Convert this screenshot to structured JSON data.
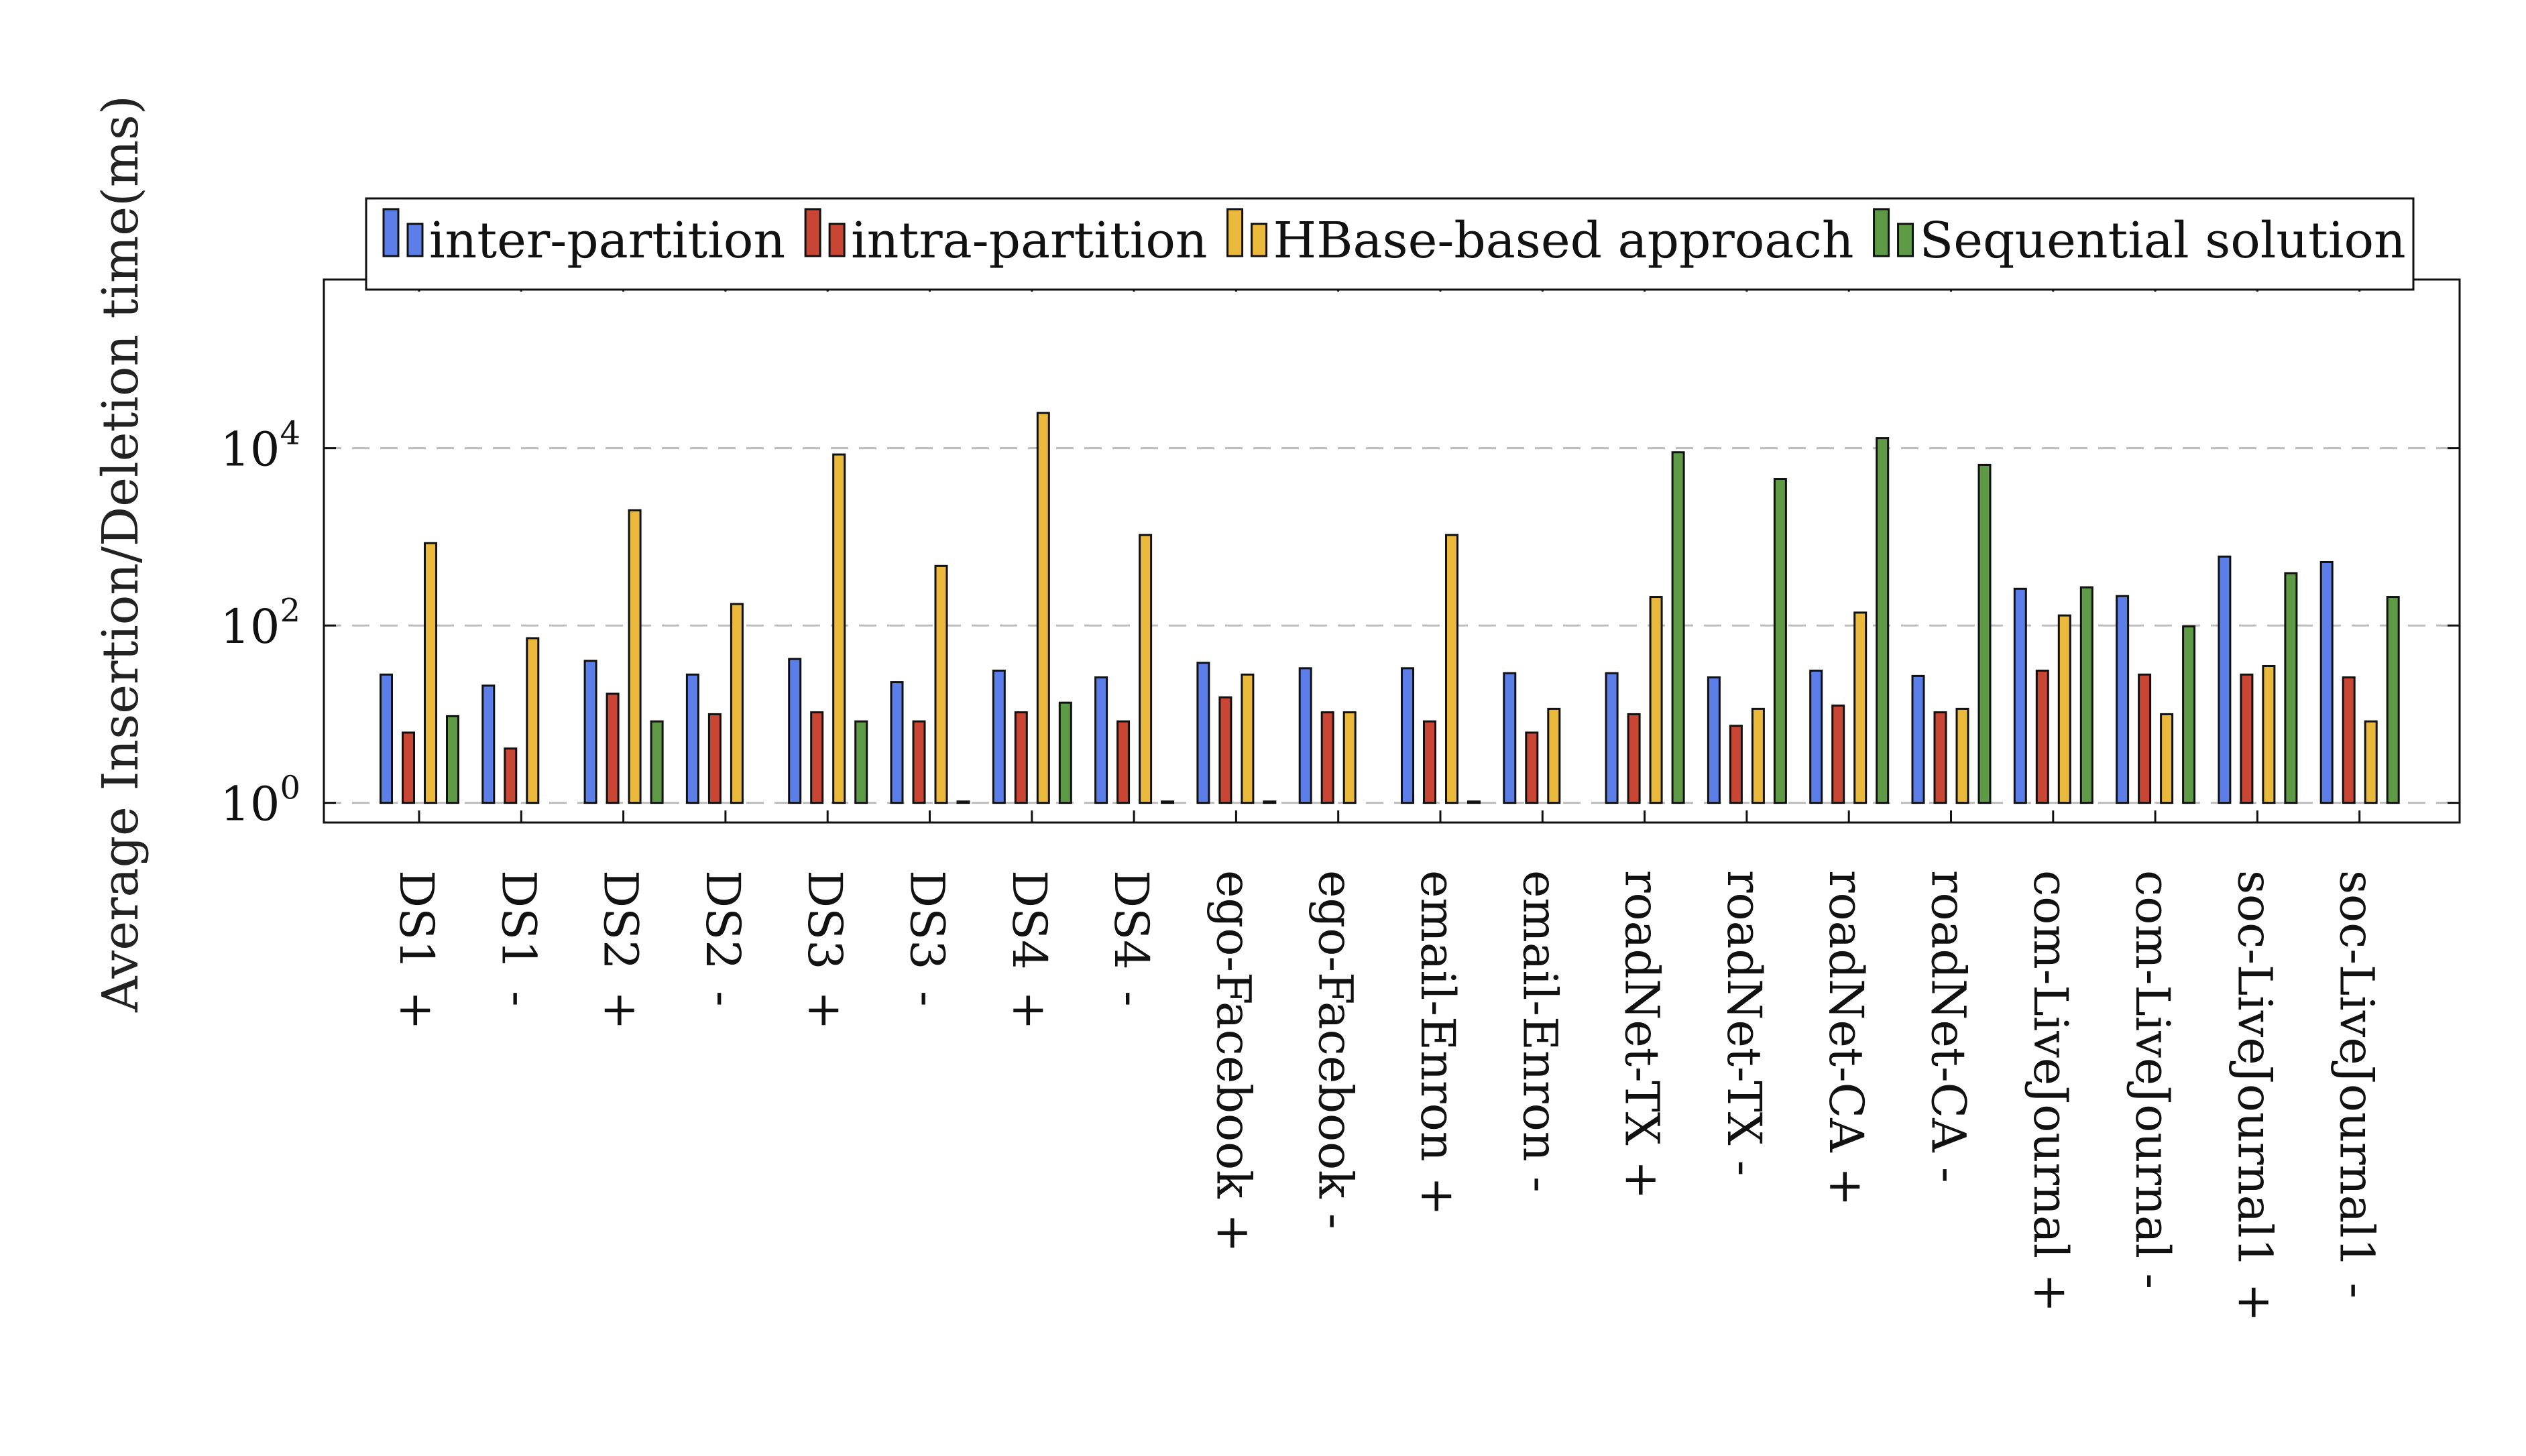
{
  "chart_data": {
    "type": "bar",
    "ylabel": "Average Insertion/Deletion time(ms)",
    "xlabel": "",
    "yscale": "log",
    "ylim": [
      0.6,
      800000
    ],
    "yticks": [
      {
        "value": 1,
        "base": "10",
        "exp": "0"
      },
      {
        "value": 100,
        "base": "10",
        "exp": "2"
      },
      {
        "value": 10000,
        "base": "10",
        "exp": "4"
      }
    ],
    "grid": "y-dashed",
    "legend_position": "top",
    "categories": [
      [
        "DS1",
        "+"
      ],
      [
        "DS1",
        "-"
      ],
      [
        "DS2",
        "+"
      ],
      [
        "DS2",
        "-"
      ],
      [
        "DS3",
        "+"
      ],
      [
        "DS3",
        "-"
      ],
      [
        "DS4",
        "+"
      ],
      [
        "DS4",
        "-"
      ],
      [
        "ego-Facebook",
        "+"
      ],
      [
        "ego-Facebook",
        "-"
      ],
      [
        "email-Enron",
        "+"
      ],
      [
        "email-Enron",
        "-"
      ],
      [
        "roadNet-TX",
        "+"
      ],
      [
        "roadNet-TX",
        "-"
      ],
      [
        "roadNet-CA",
        "+"
      ],
      [
        "roadNet-CA",
        "-"
      ],
      [
        "com-LiveJournal",
        "+"
      ],
      [
        "com-LiveJournal",
        "-"
      ],
      [
        "soc-LiveJournal1",
        "+"
      ],
      [
        "soc-LiveJournal1",
        "-"
      ]
    ],
    "series": [
      {
        "name": "inter-partition",
        "color": "#5b7ee8",
        "values": [
          28,
          21,
          40,
          28,
          42,
          23,
          31,
          26,
          38,
          33,
          33,
          29,
          29,
          26,
          31,
          27,
          260,
          215,
          600,
          520
        ]
      },
      {
        "name": "intra-partition",
        "color": "#c94534",
        "values": [
          6.2,
          4.1,
          17,
          10,
          10.5,
          8.3,
          10.5,
          8.3,
          15.5,
          10.5,
          8.3,
          6.2,
          10,
          7.4,
          12.5,
          10.5,
          31,
          28,
          28,
          26
        ]
      },
      {
        "name": "HBase-based approach",
        "color": "#eab83b",
        "values": [
          850,
          72,
          2000,
          175,
          8500,
          470,
          25000,
          1050,
          28,
          10.5,
          1050,
          11.5,
          210,
          11.5,
          140,
          11.5,
          130,
          10,
          35,
          8.3
        ]
      },
      {
        "name": "Sequential solution",
        "color": "#5f9a47",
        "values": [
          9.5,
          null,
          8.3,
          null,
          8.3,
          1,
          13.5,
          1,
          1,
          null,
          1,
          null,
          9000,
          4500,
          13000,
          6500,
          270,
          98,
          390,
          210
        ]
      }
    ]
  }
}
